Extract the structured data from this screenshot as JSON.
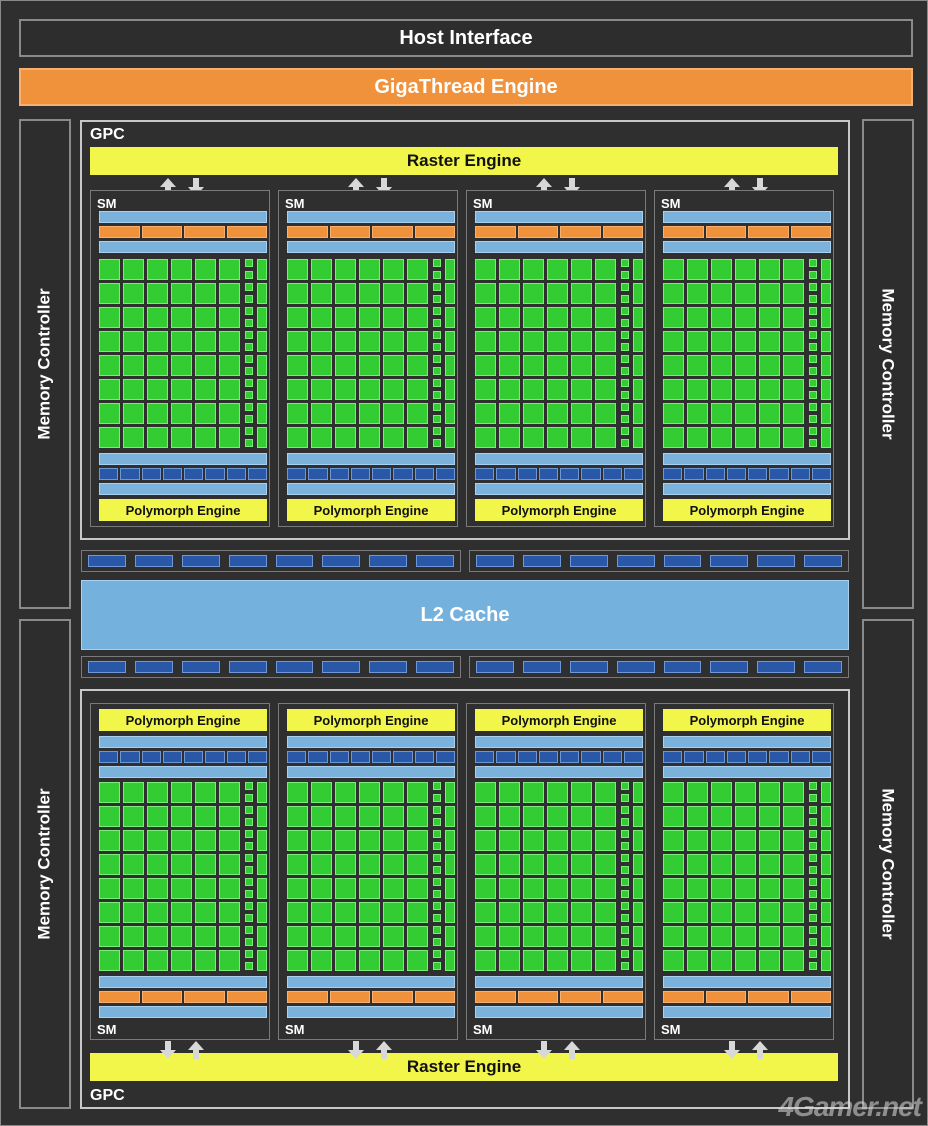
{
  "host_interface": "Host Interface",
  "gigathread_engine": "GigaThread Engine",
  "memory_controller": "Memory Controller",
  "l2_cache": "L2 Cache",
  "gpc_label": "GPC",
  "raster_engine": "Raster Engine",
  "sm_label": "SM",
  "polymorph_engine": "Polymorph Engine",
  "watermark": "4Gamer.net",
  "colors": {
    "background": "#2f2f2f",
    "gigathread": "#f0913b",
    "raster_polymorph": "#f2f64a",
    "cuda_core": "#33cc33",
    "l2_cache": "#74b2dd",
    "ld_st_units": "#2a58a8"
  }
}
